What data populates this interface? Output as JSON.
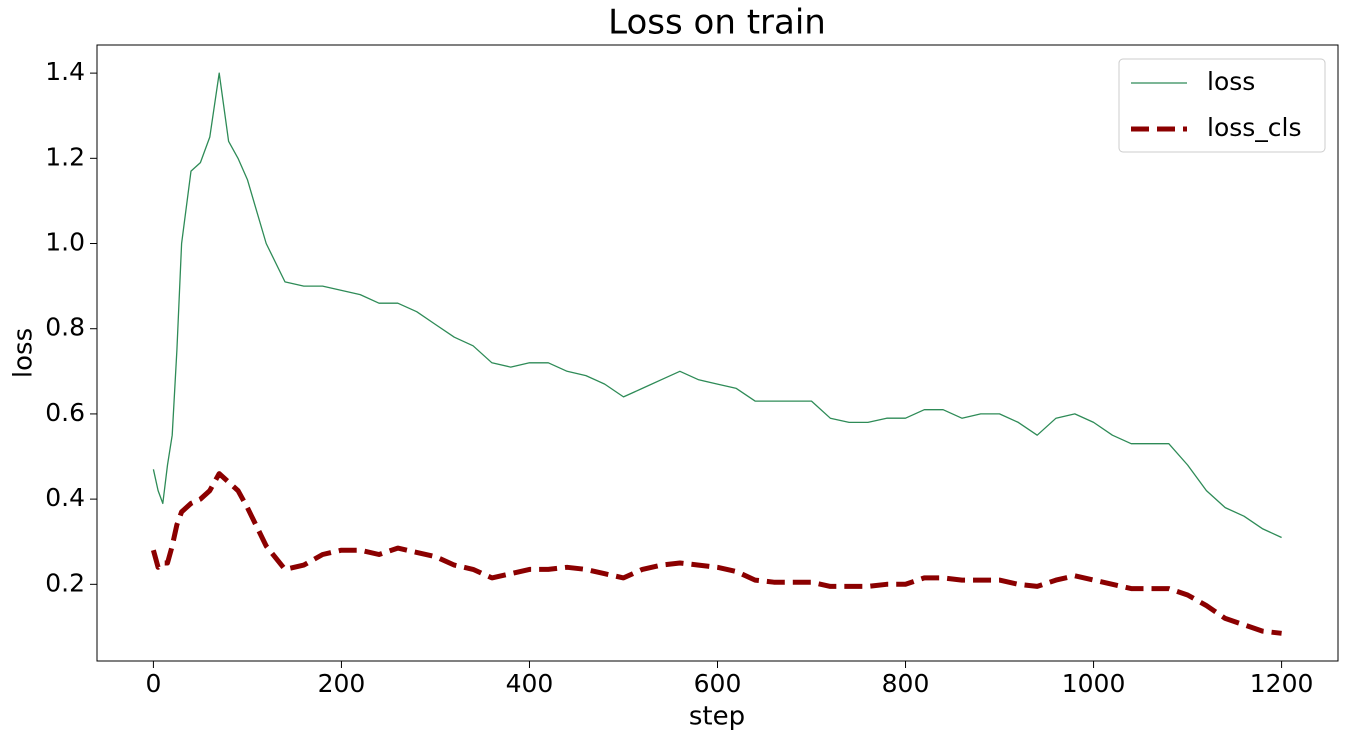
{
  "chart_data": {
    "type": "line",
    "title": "Loss on train",
    "x_label": "step",
    "y_label": "loss",
    "x": [
      0,
      5,
      10,
      15,
      20,
      25,
      30,
      40,
      50,
      60,
      70,
      80,
      90,
      100,
      120,
      140,
      160,
      180,
      200,
      220,
      240,
      260,
      280,
      300,
      320,
      340,
      360,
      380,
      400,
      420,
      440,
      460,
      480,
      500,
      520,
      540,
      560,
      580,
      600,
      620,
      640,
      660,
      680,
      700,
      720,
      740,
      760,
      780,
      800,
      820,
      840,
      860,
      880,
      900,
      920,
      940,
      960,
      980,
      1000,
      1020,
      1040,
      1060,
      1080,
      1100,
      1120,
      1140,
      1160,
      1180,
      1200
    ],
    "series": [
      {
        "name": "loss",
        "color": "#2e8b57",
        "dash": "solid",
        "width": 1.3,
        "values": [
          0.47,
          0.42,
          0.39,
          0.48,
          0.55,
          0.75,
          1.0,
          1.17,
          1.19,
          1.25,
          1.4,
          1.24,
          1.2,
          1.15,
          1.0,
          0.91,
          0.9,
          0.9,
          0.89,
          0.88,
          0.86,
          0.86,
          0.84,
          0.81,
          0.78,
          0.76,
          0.72,
          0.71,
          0.72,
          0.72,
          0.7,
          0.69,
          0.67,
          0.64,
          0.66,
          0.68,
          0.7,
          0.68,
          0.67,
          0.66,
          0.63,
          0.63,
          0.63,
          0.63,
          0.59,
          0.58,
          0.58,
          0.59,
          0.59,
          0.61,
          0.61,
          0.59,
          0.6,
          0.6,
          0.58,
          0.55,
          0.59,
          0.6,
          0.58,
          0.55,
          0.53,
          0.53,
          0.53,
          0.48,
          0.42,
          0.38,
          0.36,
          0.33,
          0.31
        ]
      },
      {
        "name": "loss_cls",
        "color": "#8b0000",
        "dash": "dashed",
        "width": 5,
        "values": [
          0.28,
          0.24,
          0.25,
          0.25,
          0.29,
          0.34,
          0.37,
          0.39,
          0.4,
          0.42,
          0.46,
          0.44,
          0.42,
          0.38,
          0.29,
          0.235,
          0.245,
          0.27,
          0.28,
          0.28,
          0.27,
          0.285,
          0.275,
          0.265,
          0.245,
          0.235,
          0.215,
          0.225,
          0.235,
          0.235,
          0.24,
          0.235,
          0.225,
          0.215,
          0.235,
          0.245,
          0.25,
          0.245,
          0.24,
          0.23,
          0.21,
          0.205,
          0.205,
          0.205,
          0.195,
          0.195,
          0.195,
          0.2,
          0.2,
          0.215,
          0.215,
          0.21,
          0.21,
          0.21,
          0.2,
          0.195,
          0.21,
          0.22,
          0.21,
          0.2,
          0.19,
          0.19,
          0.19,
          0.175,
          0.15,
          0.12,
          0.105,
          0.09,
          0.085
        ]
      }
    ],
    "xlim": [
      -60,
      1260
    ],
    "ylim": [
      0.02,
      1.466
    ],
    "xticks": [
      0,
      200,
      400,
      600,
      800,
      1000,
      1200
    ],
    "yticks": [
      0.2,
      0.4,
      0.6,
      0.8,
      {
        "value": 1,
        "label": "1.0"
      },
      1.2,
      1.4
    ],
    "legend": "upper right"
  }
}
